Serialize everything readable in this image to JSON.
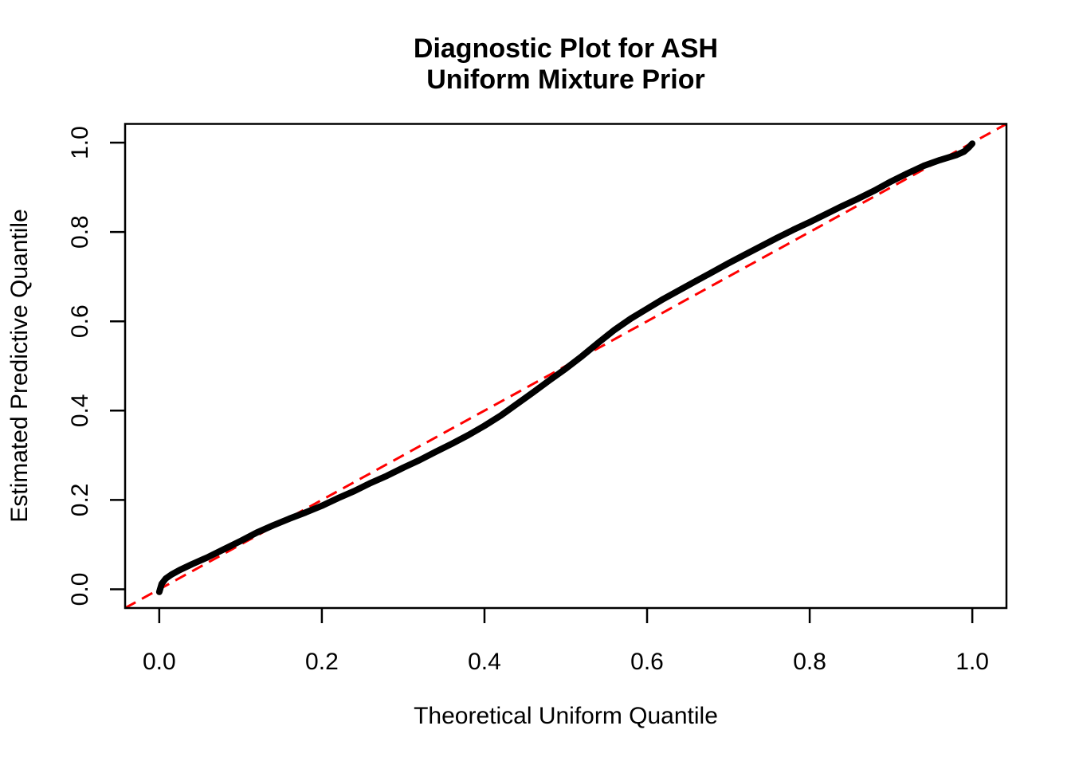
{
  "title": {
    "line1": "Diagnostic Plot for ASH",
    "line2": "Uniform Mixture Prior"
  },
  "axes": {
    "x_label": "Theoretical Uniform Quantile",
    "y_label": "Estimated Predictive Quantile"
  },
  "colors": {
    "curve": "#000000",
    "reference_line": "#FF0000",
    "axis": "#000000",
    "background": "#FFFFFF"
  },
  "chart_data": {
    "type": "scatter",
    "title": "Diagnostic Plot for ASH\nUniform Mixture Prior",
    "xlabel": "Theoretical Uniform Quantile",
    "ylabel": "Estimated Predictive Quantile",
    "xlim": [
      0,
      1
    ],
    "ylim": [
      0,
      1
    ],
    "axis_expansion": 0.042,
    "grid": false,
    "legend": "none",
    "x_ticks": {
      "values": [
        0,
        0.2,
        0.4,
        0.6,
        0.8,
        1.0
      ],
      "labels": [
        "0.0",
        "0.2",
        "0.4",
        "0.6",
        "0.8",
        "1.0"
      ]
    },
    "y_ticks": {
      "values": [
        0,
        0.2,
        0.4,
        0.6,
        0.8,
        1.0
      ],
      "labels": [
        "0.0",
        "0.2",
        "0.4",
        "0.6",
        "0.8",
        "1.0"
      ]
    },
    "reference_line": {
      "name": "y-equals-x",
      "intercept": 0,
      "slope": 1,
      "style": "dashed",
      "color": "#FF0000"
    },
    "series": [
      {
        "name": "estimated-predictive-quantiles",
        "color": "#000000",
        "points": [
          [
            0.0,
            -0.006
          ],
          [
            0.003,
            0.012
          ],
          [
            0.008,
            0.024
          ],
          [
            0.015,
            0.033
          ],
          [
            0.025,
            0.043
          ],
          [
            0.04,
            0.056
          ],
          [
            0.06,
            0.072
          ],
          [
            0.08,
            0.09
          ],
          [
            0.1,
            0.108
          ],
          [
            0.12,
            0.127
          ],
          [
            0.14,
            0.143
          ],
          [
            0.16,
            0.158
          ],
          [
            0.18,
            0.172
          ],
          [
            0.2,
            0.187
          ],
          [
            0.22,
            0.204
          ],
          [
            0.24,
            0.22
          ],
          [
            0.26,
            0.238
          ],
          [
            0.28,
            0.254
          ],
          [
            0.3,
            0.272
          ],
          [
            0.32,
            0.289
          ],
          [
            0.34,
            0.308
          ],
          [
            0.36,
            0.326
          ],
          [
            0.38,
            0.345
          ],
          [
            0.4,
            0.366
          ],
          [
            0.42,
            0.389
          ],
          [
            0.44,
            0.415
          ],
          [
            0.46,
            0.441
          ],
          [
            0.48,
            0.468
          ],
          [
            0.5,
            0.494
          ],
          [
            0.52,
            0.522
          ],
          [
            0.54,
            0.552
          ],
          [
            0.56,
            0.581
          ],
          [
            0.58,
            0.606
          ],
          [
            0.6,
            0.628
          ],
          [
            0.62,
            0.65
          ],
          [
            0.64,
            0.67
          ],
          [
            0.66,
            0.69
          ],
          [
            0.68,
            0.71
          ],
          [
            0.7,
            0.73
          ],
          [
            0.72,
            0.749
          ],
          [
            0.74,
            0.768
          ],
          [
            0.76,
            0.787
          ],
          [
            0.78,
            0.805
          ],
          [
            0.8,
            0.822
          ],
          [
            0.82,
            0.84
          ],
          [
            0.84,
            0.858
          ],
          [
            0.86,
            0.875
          ],
          [
            0.88,
            0.893
          ],
          [
            0.9,
            0.913
          ],
          [
            0.92,
            0.931
          ],
          [
            0.94,
            0.948
          ],
          [
            0.96,
            0.961
          ],
          [
            0.98,
            0.972
          ],
          [
            0.99,
            0.98
          ],
          [
            0.996,
            0.99
          ],
          [
            1.0,
            0.998
          ]
        ]
      }
    ]
  }
}
